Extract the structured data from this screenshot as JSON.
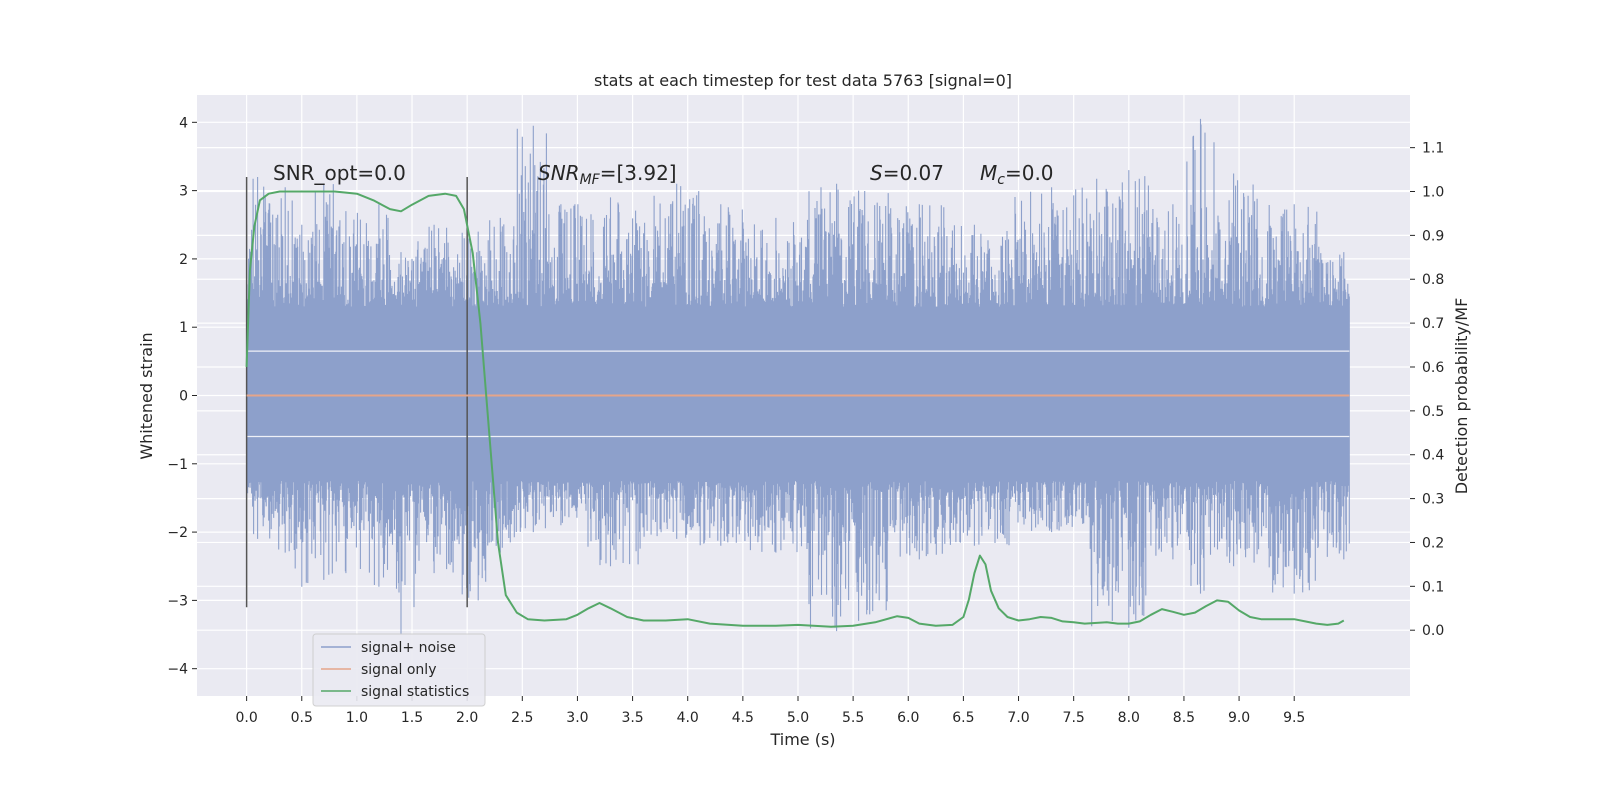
{
  "chart_data": {
    "type": "line",
    "title": "stats at each timestep for test data 5763 [signal=0]",
    "xlabel": "Time (s)",
    "ylabel": "Whitened strain",
    "y2label": "Detection probability/MF",
    "xlim": [
      -0.45,
      10.55
    ],
    "ylim": [
      -4.4,
      4.4
    ],
    "y2lim": [
      -0.15,
      1.22
    ],
    "x_ticks": [
      "0.0",
      "0.5",
      "1.0",
      "1.5",
      "2.0",
      "2.5",
      "3.0",
      "3.5",
      "4.0",
      "4.5",
      "5.0",
      "5.5",
      "6.0",
      "6.5",
      "7.0",
      "7.5",
      "8.0",
      "8.5",
      "9.0",
      "9.5"
    ],
    "y_ticks": [
      "4",
      "3",
      "2",
      "1",
      "0",
      "−1",
      "−2",
      "−3",
      "−4"
    ],
    "y2_ticks": [
      "1.1",
      "1.0",
      "0.9",
      "0.8",
      "0.7",
      "0.6",
      "0.5",
      "0.4",
      "0.3",
      "0.2",
      "0.1",
      "0.0"
    ],
    "grid": true,
    "legend_position": "lower-left",
    "annotations": {
      "snr_opt": "SNR_opt=0.0",
      "snr_mf_base": "SNR",
      "snr_mf_sub": "MF",
      "snr_mf_rest": "=[3.92]",
      "s_sym": "S",
      "s_rest": "=0.07",
      "mc_sym": "M",
      "mc_sub": "c",
      "mc_rest": "=0.0"
    },
    "markers": [
      0.0,
      2.0
    ],
    "series": [
      {
        "name": "signal+ noise",
        "color": "#8da0cb",
        "axis": "left",
        "core_band": [
          -1.25,
          1.3
        ],
        "time_range": [
          0.0,
          10.0
        ],
        "peaks": [
          [
            0.0,
            2.5,
            -1.5
          ],
          [
            0.1,
            3.2,
            -2.1
          ],
          [
            0.35,
            3.05,
            -2.3
          ],
          [
            0.5,
            2.5,
            -2.8
          ],
          [
            0.7,
            3.1,
            -2.7
          ],
          [
            0.9,
            2.7,
            -2.6
          ],
          [
            1.2,
            2.8,
            -2.8
          ],
          [
            1.4,
            2.1,
            -3.5
          ],
          [
            1.7,
            2.5,
            -2.6
          ],
          [
            2.1,
            2.4,
            -3.0
          ],
          [
            2.3,
            2.6,
            -2.3
          ],
          [
            2.6,
            3.95,
            -2.0
          ],
          [
            2.85,
            2.8,
            -1.9
          ],
          [
            3.3,
            2.9,
            -2.5
          ],
          [
            3.9,
            3.1,
            -2.1
          ],
          [
            4.3,
            2.8,
            -2.2
          ],
          [
            4.8,
            2.6,
            -2.3
          ],
          [
            5.35,
            3.1,
            -3.45
          ],
          [
            5.55,
            3.0,
            -3.3
          ],
          [
            6.1,
            2.8,
            -2.4
          ],
          [
            6.6,
            2.5,
            -2.2
          ],
          [
            7.3,
            3.05,
            -2.0
          ],
          [
            8.0,
            3.3,
            -3.4
          ],
          [
            8.4,
            2.8,
            -2.4
          ],
          [
            8.65,
            4.05,
            -2.9
          ],
          [
            8.95,
            3.25,
            -2.5
          ],
          [
            9.5,
            2.8,
            -2.9
          ],
          [
            9.95,
            2.1,
            -2.4
          ]
        ]
      },
      {
        "name": "signal only",
        "color": "#e5a58a",
        "axis": "left",
        "x": [
          0.0,
          10.0
        ],
        "y": [
          0.0,
          0.0
        ]
      },
      {
        "name": "signal statistics",
        "color": "#55a868",
        "axis": "right",
        "x": [
          0.0,
          0.03,
          0.07,
          0.12,
          0.2,
          0.3,
          0.5,
          0.8,
          1.0,
          1.15,
          1.3,
          1.4,
          1.5,
          1.65,
          1.8,
          1.9,
          1.97,
          2.05,
          2.12,
          2.2,
          2.28,
          2.35,
          2.45,
          2.55,
          2.7,
          2.9,
          3.0,
          3.1,
          3.2,
          3.3,
          3.45,
          3.6,
          3.8,
          4.0,
          4.2,
          4.5,
          4.8,
          5.0,
          5.3,
          5.5,
          5.7,
          5.9,
          6.0,
          6.1,
          6.25,
          6.4,
          6.5,
          6.55,
          6.6,
          6.65,
          6.7,
          6.75,
          6.82,
          6.9,
          7.0,
          7.1,
          7.2,
          7.3,
          7.4,
          7.5,
          7.6,
          7.8,
          7.9,
          8.0,
          8.1,
          8.2,
          8.3,
          8.4,
          8.5,
          8.6,
          8.7,
          8.8,
          8.9,
          9.0,
          9.1,
          9.2,
          9.4,
          9.5,
          9.6,
          9.7,
          9.8,
          9.9,
          9.95
        ],
        "y": [
          0.6,
          0.82,
          0.92,
          0.98,
          0.995,
          1.0,
          1.0,
          1.0,
          0.995,
          0.98,
          0.96,
          0.955,
          0.97,
          0.99,
          0.995,
          0.99,
          0.96,
          0.86,
          0.7,
          0.45,
          0.2,
          0.08,
          0.04,
          0.025,
          0.022,
          0.025,
          0.035,
          0.05,
          0.062,
          0.05,
          0.03,
          0.022,
          0.022,
          0.025,
          0.015,
          0.01,
          0.01,
          0.012,
          0.008,
          0.01,
          0.018,
          0.032,
          0.028,
          0.015,
          0.01,
          0.012,
          0.03,
          0.07,
          0.13,
          0.17,
          0.15,
          0.09,
          0.05,
          0.03,
          0.022,
          0.025,
          0.03,
          0.028,
          0.02,
          0.018,
          0.015,
          0.018,
          0.015,
          0.015,
          0.02,
          0.035,
          0.048,
          0.042,
          0.035,
          0.04,
          0.055,
          0.068,
          0.065,
          0.045,
          0.03,
          0.025,
          0.025,
          0.025,
          0.02,
          0.015,
          0.012,
          0.015,
          0.022
        ]
      }
    ]
  }
}
